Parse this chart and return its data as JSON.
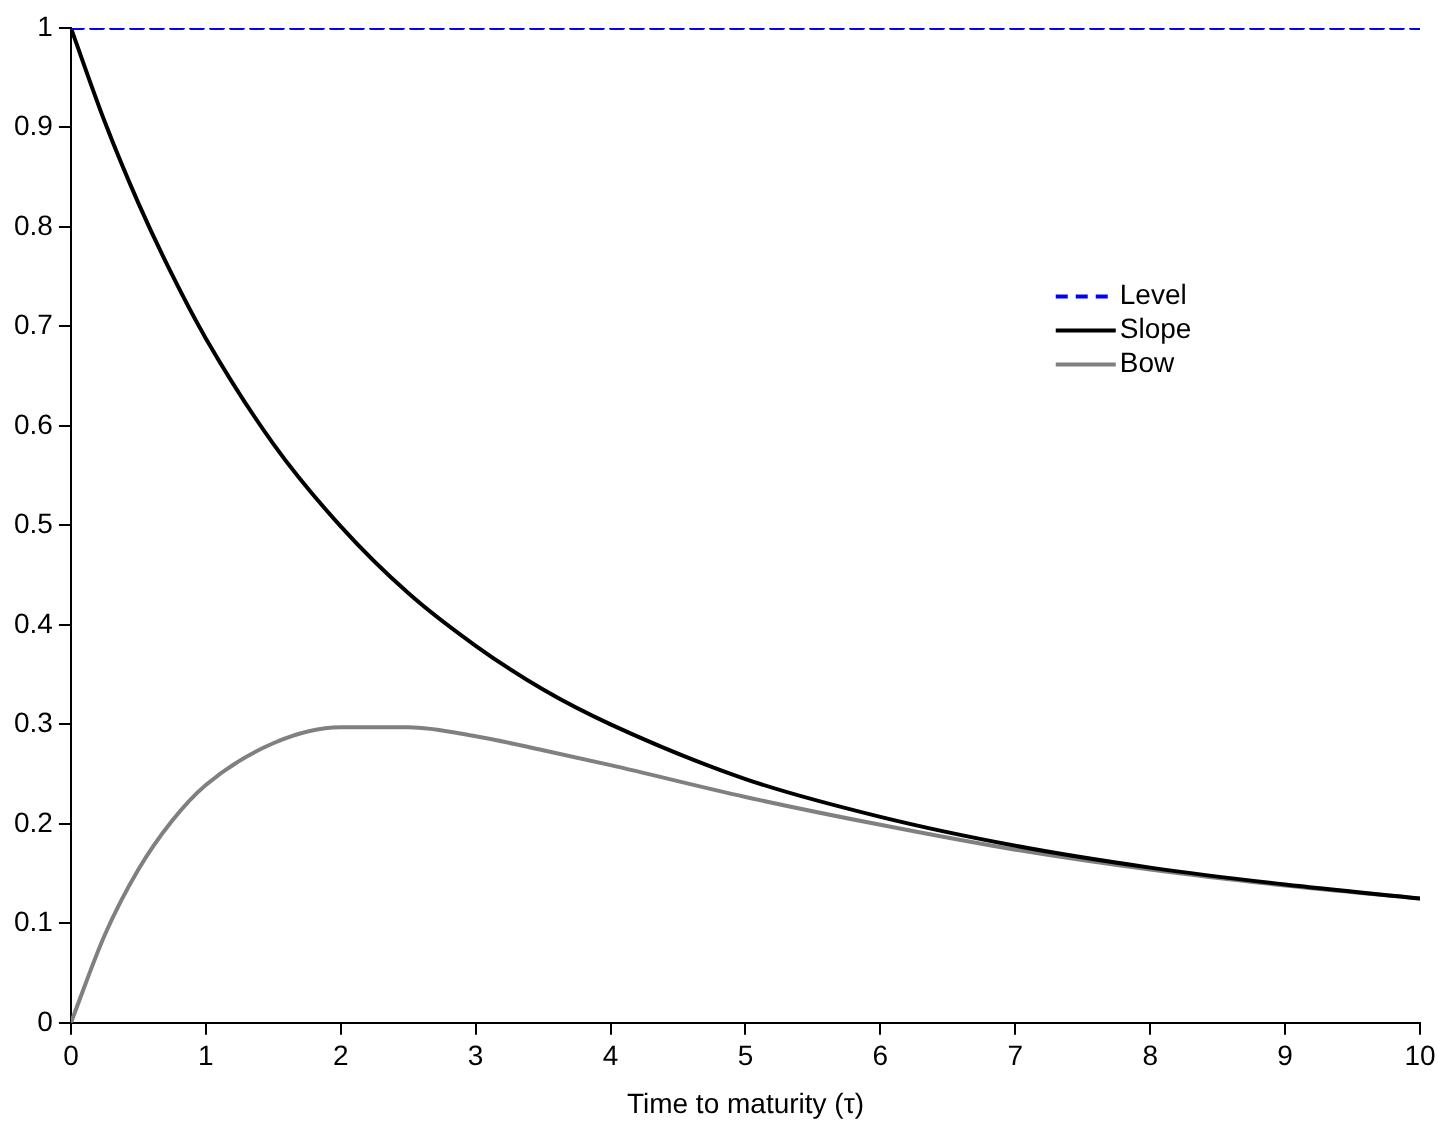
{
  "chart_data": {
    "type": "line",
    "xlabel": "Time to maturity (τ)",
    "x": [
      0,
      0.25,
      0.5,
      0.75,
      1,
      1.5,
      2,
      2.5,
      3,
      3.5,
      4,
      5,
      6,
      7,
      8,
      9,
      10
    ],
    "series": [
      {
        "name": "Level",
        "color": "#0000ff",
        "line_style": "dashed",
        "values": [
          1,
          1,
          1,
          1,
          1,
          1,
          1,
          1,
          1,
          1,
          1,
          1,
          1,
          1,
          1,
          1,
          1
        ]
      },
      {
        "name": "Slope",
        "color": "#000000",
        "line_style": "solid",
        "values": [
          1,
          0.906,
          0.824,
          0.752,
          0.688,
          0.582,
          0.499,
          0.432,
          0.379,
          0.335,
          0.3,
          0.245,
          0.207,
          0.178,
          0.156,
          0.139,
          0.125
        ]
      },
      {
        "name": "Bow",
        "color": "#808080",
        "line_style": "solid",
        "values": [
          0,
          0.088,
          0.154,
          0.203,
          0.239,
          0.281,
          0.297,
          0.297,
          0.288,
          0.274,
          0.259,
          0.227,
          0.199,
          0.174,
          0.154,
          0.138,
          0.125
        ]
      }
    ],
    "xlim": [
      0,
      10
    ],
    "xticks": [
      0,
      1,
      2,
      3,
      4,
      5,
      6,
      7,
      8,
      9,
      10
    ],
    "ylim": [
      0,
      1
    ],
    "yticks": [
      0,
      0.1,
      0.2,
      0.3,
      0.4,
      0.5,
      0.6,
      0.7,
      0.8,
      0.9,
      1
    ],
    "grid": false,
    "legend": "right",
    "marker": "none"
  }
}
